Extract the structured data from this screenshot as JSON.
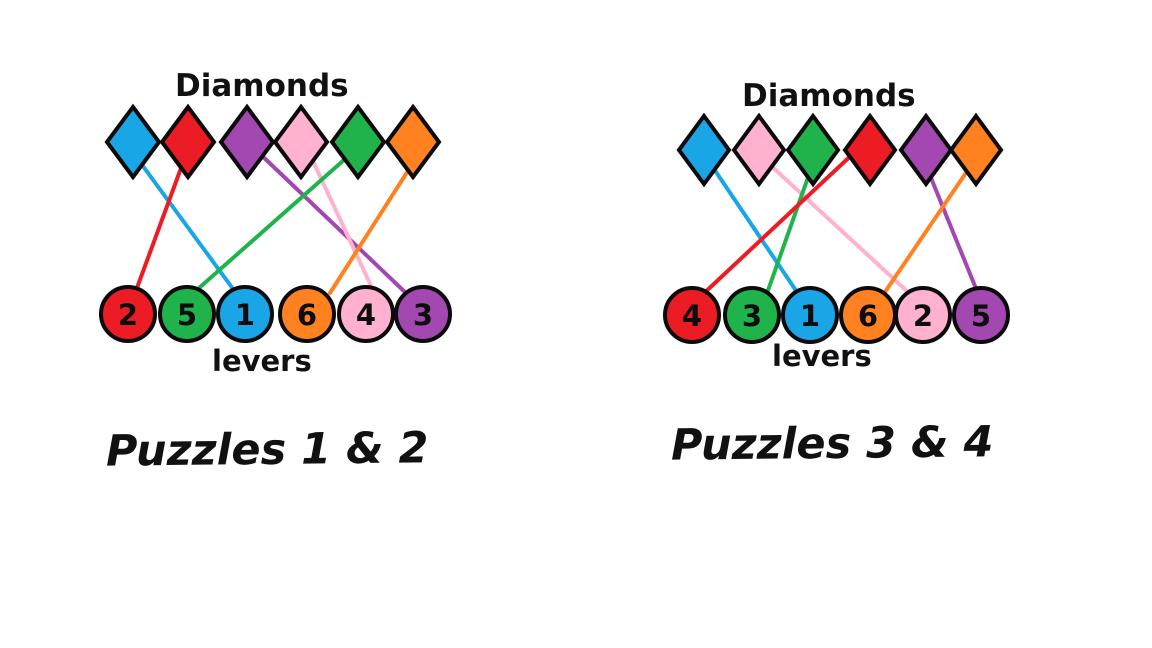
{
  "palette": {
    "blue": "#1aa5e6",
    "red": "#ec1c24",
    "purple": "#a347b1",
    "pink": "#ffb1cf",
    "green": "#20b34c",
    "orange": "#ff8120",
    "outline": "#0b0b0b"
  },
  "puzzles": [
    {
      "diamonds_label": "Diamonds",
      "levers_label": "levers",
      "title": "Puzzles 1 & 2",
      "diamonds": [
        {
          "color": "blue",
          "icon": "blue-diamond-icon"
        },
        {
          "color": "red",
          "icon": "red-diamond-icon"
        },
        {
          "color": "purple",
          "icon": "purple-diamond-icon"
        },
        {
          "color": "pink",
          "icon": "pink-diamond-icon"
        },
        {
          "color": "green",
          "icon": "green-diamond-icon"
        },
        {
          "color": "orange",
          "icon": "orange-diamond-icon"
        }
      ],
      "levers": [
        {
          "number": "2",
          "color": "red"
        },
        {
          "number": "5",
          "color": "green"
        },
        {
          "number": "1",
          "color": "blue"
        },
        {
          "number": "6",
          "color": "orange"
        },
        {
          "number": "4",
          "color": "pink"
        },
        {
          "number": "3",
          "color": "purple"
        }
      ],
      "connections": [
        {
          "from_diamond": "blue",
          "to_lever": "1",
          "color": "blue"
        },
        {
          "from_diamond": "red",
          "to_lever": "2",
          "color": "red"
        },
        {
          "from_diamond": "purple",
          "to_lever": "3",
          "color": "purple"
        },
        {
          "from_diamond": "pink",
          "to_lever": "4",
          "color": "pink"
        },
        {
          "from_diamond": "green",
          "to_lever": "5",
          "color": "green"
        },
        {
          "from_diamond": "orange",
          "to_lever": "6",
          "color": "orange"
        }
      ]
    },
    {
      "diamonds_label": "Diamonds",
      "levers_label": "levers",
      "title": "Puzzles 3 & 4",
      "diamonds": [
        {
          "color": "blue",
          "icon": "blue-diamond-icon"
        },
        {
          "color": "pink",
          "icon": "pink-diamond-icon"
        },
        {
          "color": "green",
          "icon": "green-diamond-icon"
        },
        {
          "color": "red",
          "icon": "red-diamond-icon"
        },
        {
          "color": "purple",
          "icon": "purple-diamond-icon"
        },
        {
          "color": "orange",
          "icon": "orange-diamond-icon"
        }
      ],
      "levers": [
        {
          "number": "4",
          "color": "red"
        },
        {
          "number": "3",
          "color": "green"
        },
        {
          "number": "1",
          "color": "blue"
        },
        {
          "number": "6",
          "color": "orange"
        },
        {
          "number": "2",
          "color": "pink"
        },
        {
          "number": "5",
          "color": "purple"
        }
      ],
      "connections": [
        {
          "from_diamond": "blue",
          "to_lever": "1",
          "color": "blue"
        },
        {
          "from_diamond": "pink",
          "to_lever": "2",
          "color": "pink"
        },
        {
          "from_diamond": "green",
          "to_lever": "3",
          "color": "green"
        },
        {
          "from_diamond": "red",
          "to_lever": "4",
          "color": "red"
        },
        {
          "from_diamond": "purple",
          "to_lever": "5",
          "color": "purple"
        },
        {
          "from_diamond": "orange",
          "to_lever": "6",
          "color": "orange"
        }
      ]
    }
  ]
}
